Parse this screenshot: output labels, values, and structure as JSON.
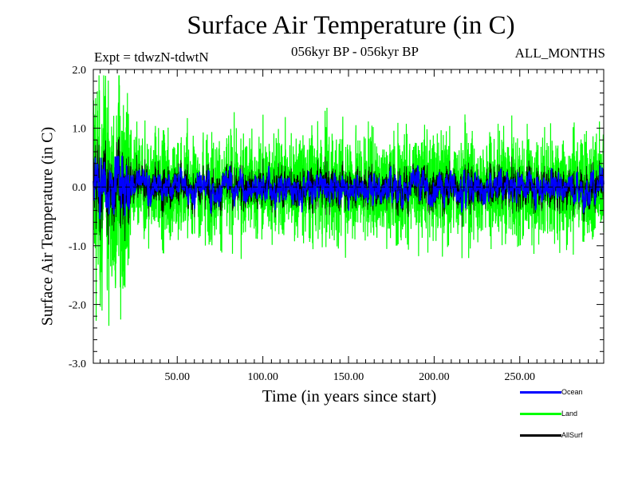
{
  "chart_data": {
    "type": "line",
    "title": "Surface Air Temperature (in C)",
    "subtitle_left": "Expt = tdwzN-tdwtN",
    "subtitle_center": "056kyr BP - 056kyr BP",
    "subtitle_right": "ALL_MONTHS",
    "xlabel": "Time (in years since start)",
    "ylabel": "Surface Air Temperature (in C)",
    "xlim": [
      1,
      299
    ],
    "ylim": [
      -3.0,
      2.0
    ],
    "xticks": [
      "50.00",
      "100.00",
      "150.00",
      "200.00",
      "250.00"
    ],
    "xtick_values": [
      50,
      100,
      150,
      200,
      250
    ],
    "yticks": [
      "2.0",
      "1.0",
      "0.0",
      "-1.0",
      "-2.0",
      "-3.0"
    ],
    "ytick_values": [
      2.0,
      1.0,
      0.0,
      -1.0,
      -2.0,
      -3.0
    ],
    "grid": false,
    "legend_position": "bottom-right",
    "zero_line_style": "dashed",
    "series": [
      {
        "name": "Ocean",
        "color": "#0000ff",
        "kind": "monthly-noise",
        "approx_range_early": [
          -0.9,
          0.5
        ],
        "approx_range_later": [
          -0.6,
          0.45
        ]
      },
      {
        "name": "Land",
        "color": "#00ff00",
        "kind": "monthly-noise",
        "approx_range_early": [
          -2.4,
          1.9
        ],
        "approx_range_later": [
          -1.6,
          1.35
        ]
      },
      {
        "name": "AllSurf",
        "color": "#000000",
        "kind": "monthly-noise",
        "approx_range_later": [
          -0.3,
          0.3
        ]
      }
    ]
  }
}
